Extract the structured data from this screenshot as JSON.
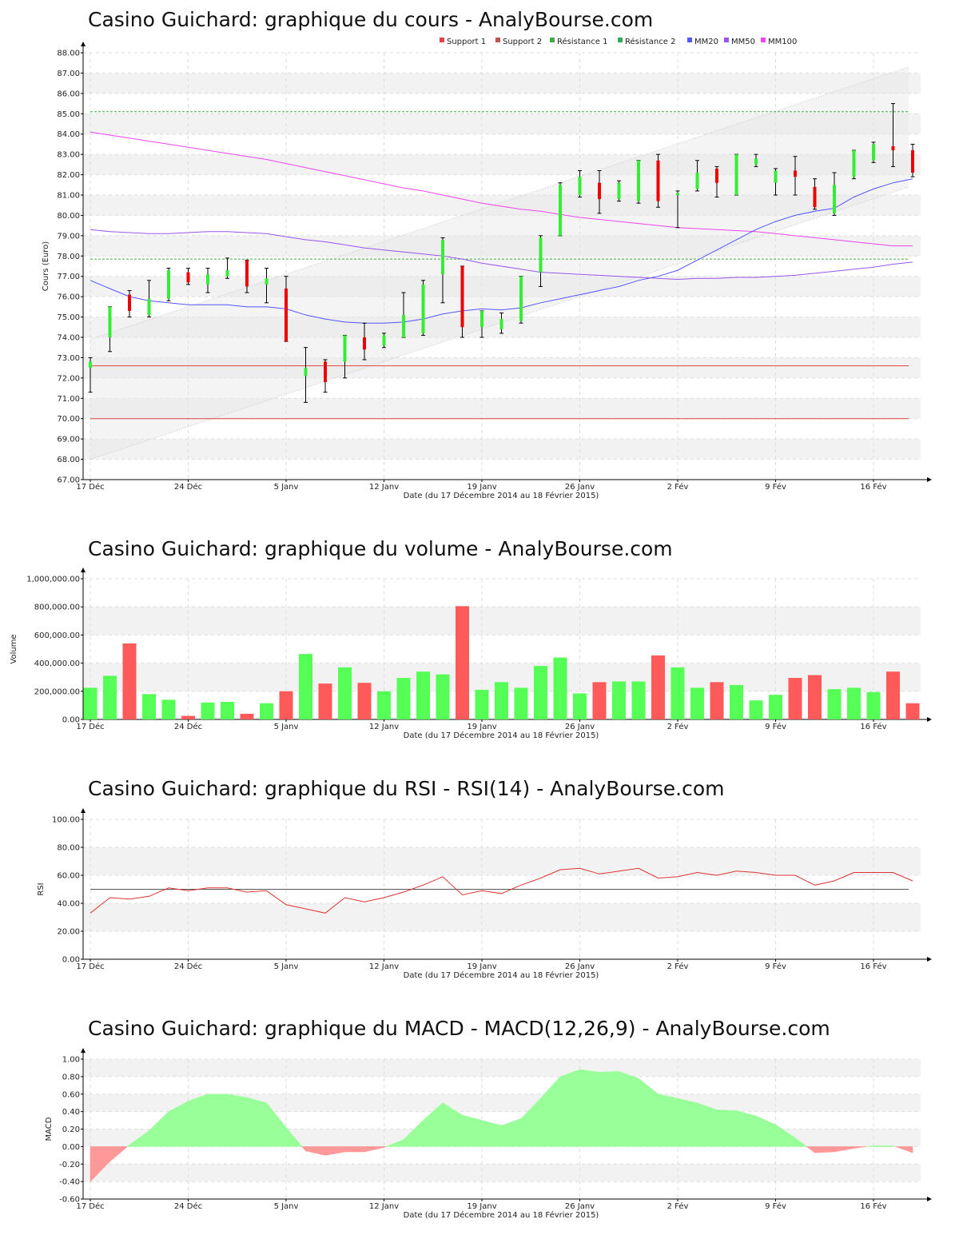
{
  "colors": {
    "up": "#33ee33",
    "down": "#ee0000",
    "support": "#dd4444",
    "resistance": "#44aa44",
    "mm20": "#5555ff",
    "mm50": "#9955ee",
    "mm100": "#ee44ee",
    "vol_up": "#55ff55",
    "vol_down": "#ff5a5a",
    "rsi": "#dd3333",
    "macd_pos": "#99ff99",
    "macd_neg": "#ff9999"
  },
  "shared_x_axis": {
    "xlabel": "Date (du 17 Décembre 2014 au 18 Février 2015)",
    "xticks": [
      {
        "label": "17 Déc",
        "index": 0
      },
      {
        "label": "24 Déc",
        "index": 5
      },
      {
        "label": "5 Janv",
        "index": 10
      },
      {
        "label": "12 Janv",
        "index": 15
      },
      {
        "label": "19 Janv",
        "index": 20
      },
      {
        "label": "26 Janv",
        "index": 25
      },
      {
        "label": "2 Fév",
        "index": 30
      },
      {
        "label": "9 Fév",
        "index": 35
      },
      {
        "label": "16 Fév",
        "index": 40
      }
    ],
    "n_sessions": 43
  },
  "chart_data": [
    {
      "type": "candlestick",
      "title": "Casino Guichard: graphique du cours - AnalyBourse.com",
      "ylabel": "Cours (Euro)",
      "ylim": [
        67,
        88
      ],
      "yticks": [
        "67.00",
        "68.00",
        "69.00",
        "70.00",
        "71.00",
        "72.00",
        "73.00",
        "74.00",
        "75.00",
        "76.00",
        "77.00",
        "78.00",
        "79.00",
        "80.00",
        "81.00",
        "82.00",
        "83.00",
        "84.00",
        "85.00",
        "86.00",
        "87.00",
        "88.00"
      ],
      "legend": [
        "Support 1",
        "Support 2",
        "Résistance 1",
        "Résistance 2",
        "MM20",
        "MM50",
        "MM100"
      ],
      "support_1": 70.0,
      "support_2": 72.6,
      "resistance_1": 77.85,
      "resistance_2": 85.1,
      "trend_channel": {
        "lower": [
          68.0,
          81.4
        ],
        "upper": [
          73.9,
          87.3
        ]
      },
      "candles": [
        {
          "o": 72.5,
          "h": 73.0,
          "l": 71.3,
          "c": 72.8
        },
        {
          "o": 74.0,
          "h": 75.5,
          "l": 73.3,
          "c": 75.5
        },
        {
          "o": 76.1,
          "h": 76.3,
          "l": 75.0,
          "c": 75.3
        },
        {
          "o": 75.1,
          "h": 76.8,
          "l": 75.0,
          "c": 75.9
        },
        {
          "o": 75.9,
          "h": 77.4,
          "l": 75.8,
          "c": 77.3
        },
        {
          "o": 77.2,
          "h": 77.4,
          "l": 76.6,
          "c": 76.7
        },
        {
          "o": 76.6,
          "h": 77.4,
          "l": 76.2,
          "c": 77.1
        },
        {
          "o": 77.0,
          "h": 77.9,
          "l": 76.9,
          "c": 77.3
        },
        {
          "o": 77.8,
          "h": 77.8,
          "l": 76.2,
          "c": 76.5
        },
        {
          "o": 76.6,
          "h": 77.4,
          "l": 75.7,
          "c": 76.9
        },
        {
          "o": 76.4,
          "h": 77.0,
          "l": 73.8,
          "c": 73.8
        },
        {
          "o": 72.1,
          "h": 73.5,
          "l": 70.8,
          "c": 72.5
        },
        {
          "o": 72.8,
          "h": 72.9,
          "l": 71.3,
          "c": 71.8
        },
        {
          "o": 72.8,
          "h": 74.1,
          "l": 72.0,
          "c": 74.1
        },
        {
          "o": 74.0,
          "h": 74.7,
          "l": 72.9,
          "c": 73.4
        },
        {
          "o": 73.6,
          "h": 74.2,
          "l": 73.5,
          "c": 74.1
        },
        {
          "o": 74.0,
          "h": 76.2,
          "l": 74.0,
          "c": 75.1
        },
        {
          "o": 74.2,
          "h": 76.8,
          "l": 74.1,
          "c": 76.6
        },
        {
          "o": 77.1,
          "h": 78.9,
          "l": 75.7,
          "c": 78.8
        },
        {
          "o": 77.5,
          "h": 77.5,
          "l": 74.0,
          "c": 74.5
        },
        {
          "o": 74.5,
          "h": 75.3,
          "l": 74.0,
          "c": 75.3
        },
        {
          "o": 74.4,
          "h": 75.2,
          "l": 74.2,
          "c": 74.9
        },
        {
          "o": 74.8,
          "h": 77.0,
          "l": 74.7,
          "c": 77.0
        },
        {
          "o": 77.2,
          "h": 79.0,
          "l": 76.5,
          "c": 78.9
        },
        {
          "o": 79.0,
          "h": 81.6,
          "l": 79.0,
          "c": 81.5
        },
        {
          "o": 81.0,
          "h": 82.2,
          "l": 80.9,
          "c": 81.9
        },
        {
          "o": 81.6,
          "h": 82.2,
          "l": 80.1,
          "c": 80.8
        },
        {
          "o": 80.8,
          "h": 81.7,
          "l": 80.7,
          "c": 81.6
        },
        {
          "o": 80.7,
          "h": 82.7,
          "l": 80.6,
          "c": 82.7
        },
        {
          "o": 82.7,
          "h": 83.0,
          "l": 80.4,
          "c": 80.7
        },
        {
          "o": 81.0,
          "h": 81.2,
          "l": 79.4,
          "c": 81.1
        },
        {
          "o": 81.3,
          "h": 82.7,
          "l": 81.2,
          "c": 82.1
        },
        {
          "o": 82.3,
          "h": 82.4,
          "l": 80.9,
          "c": 81.6
        },
        {
          "o": 81.0,
          "h": 83.0,
          "l": 81.0,
          "c": 83.0
        },
        {
          "o": 82.5,
          "h": 83.0,
          "l": 82.4,
          "c": 82.8
        },
        {
          "o": 81.6,
          "h": 82.3,
          "l": 81.0,
          "c": 82.2
        },
        {
          "o": 82.2,
          "h": 82.9,
          "l": 81.0,
          "c": 81.9
        },
        {
          "o": 81.4,
          "h": 81.8,
          "l": 80.3,
          "c": 80.4
        },
        {
          "o": 80.1,
          "h": 82.1,
          "l": 80.0,
          "c": 81.5
        },
        {
          "o": 81.9,
          "h": 83.2,
          "l": 81.8,
          "c": 83.2
        },
        {
          "o": 82.7,
          "h": 83.6,
          "l": 82.6,
          "c": 83.5
        },
        {
          "o": 83.4,
          "h": 85.5,
          "l": 82.4,
          "c": 83.2
        },
        {
          "o": 83.2,
          "h": 83.5,
          "l": 81.9,
          "c": 82.1
        }
      ],
      "mm20": [
        76.8,
        76.4,
        76.0,
        75.8,
        75.7,
        75.6,
        75.6,
        75.6,
        75.5,
        75.5,
        75.4,
        75.1,
        74.9,
        74.75,
        74.7,
        74.7,
        74.75,
        74.9,
        75.15,
        75.3,
        75.4,
        75.35,
        75.45,
        75.7,
        75.9,
        76.1,
        76.3,
        76.5,
        76.8,
        77.0,
        77.3,
        77.8,
        78.3,
        78.8,
        79.3,
        79.7,
        80.0,
        80.2,
        80.35,
        80.9,
        81.3,
        81.6,
        81.8
      ],
      "mm50": [
        79.3,
        79.2,
        79.15,
        79.1,
        79.1,
        79.15,
        79.2,
        79.2,
        79.15,
        79.1,
        78.95,
        78.8,
        78.7,
        78.55,
        78.4,
        78.3,
        78.2,
        78.1,
        78.0,
        77.85,
        77.65,
        77.5,
        77.35,
        77.2,
        77.15,
        77.1,
        77.05,
        77.0,
        76.95,
        76.9,
        76.85,
        76.9,
        76.9,
        76.95,
        76.95,
        77.0,
        77.05,
        77.15,
        77.25,
        77.35,
        77.45,
        77.6,
        77.7
      ],
      "mm100": [
        84.1,
        83.95,
        83.8,
        83.65,
        83.5,
        83.35,
        83.2,
        83.05,
        82.9,
        82.75,
        82.55,
        82.35,
        82.15,
        81.95,
        81.75,
        81.55,
        81.35,
        81.2,
        81.0,
        80.8,
        80.6,
        80.45,
        80.3,
        80.2,
        80.05,
        79.9,
        79.8,
        79.7,
        79.6,
        79.5,
        79.4,
        79.35,
        79.3,
        79.25,
        79.2,
        79.1,
        79.0,
        78.9,
        78.8,
        78.7,
        78.6,
        78.5,
        78.5
      ]
    },
    {
      "type": "bar",
      "title": "Casino Guichard: graphique du volume - AnalyBourse.com",
      "ylabel": "Volume",
      "ylim": [
        0,
        1000000
      ],
      "yticks": [
        "0.00",
        "200,000.00",
        "400,000.00",
        "600,000.00",
        "800,000.00",
        "1,000,000.00"
      ],
      "values": [
        225000,
        310000,
        540000,
        180000,
        140000,
        25000,
        120000,
        125000,
        40000,
        115000,
        200000,
        465000,
        255000,
        370000,
        260000,
        200000,
        295000,
        340000,
        320000,
        805000,
        210000,
        265000,
        225000,
        380000,
        440000,
        185000,
        265000,
        270000,
        270000,
        455000,
        370000,
        225000,
        265000,
        245000,
        135000,
        175000,
        295000,
        315000,
        215000,
        225000,
        195000,
        340000,
        115000
      ],
      "up": [
        true,
        true,
        false,
        true,
        true,
        false,
        true,
        true,
        false,
        true,
        false,
        true,
        false,
        true,
        false,
        true,
        true,
        true,
        true,
        false,
        true,
        true,
        true,
        true,
        true,
        true,
        false,
        true,
        true,
        false,
        true,
        true,
        false,
        true,
        true,
        true,
        false,
        false,
        true,
        true,
        true,
        false,
        false
      ]
    },
    {
      "type": "line",
      "title": "Casino Guichard: graphique du RSI - RSI(14) - AnalyBourse.com",
      "ylabel": "RSI",
      "ylim": [
        0,
        100
      ],
      "yticks": [
        "0.00",
        "20.00",
        "40.00",
        "60.00",
        "80.00",
        "100.00"
      ],
      "reference_line": 50,
      "values": [
        33,
        44,
        43,
        45,
        51,
        49,
        51,
        51,
        48,
        49,
        39,
        36,
        33,
        44,
        41,
        44,
        48,
        53,
        59,
        46,
        49,
        47,
        53,
        58,
        64,
        65,
        61,
        63,
        65,
        58,
        59,
        62,
        60,
        63,
        62,
        60,
        60,
        53,
        56,
        62,
        62,
        62,
        56
      ]
    },
    {
      "type": "area",
      "title": "Casino Guichard: graphique du MACD - MACD(12,26,9) - AnalyBourse.com",
      "ylabel": "MACD",
      "ylim": [
        -0.6,
        1.0
      ],
      "yticks": [
        "-0.60",
        "-0.40",
        "-0.20",
        "0.00",
        "0.20",
        "0.40",
        "0.60",
        "0.80",
        "1.00"
      ],
      "values": [
        -0.4,
        -0.17,
        0.02,
        0.18,
        0.4,
        0.52,
        0.6,
        0.6,
        0.56,
        0.5,
        0.22,
        -0.05,
        -0.1,
        -0.06,
        -0.06,
        -0.01,
        0.08,
        0.3,
        0.5,
        0.36,
        0.3,
        0.24,
        0.32,
        0.55,
        0.8,
        0.88,
        0.85,
        0.86,
        0.78,
        0.6,
        0.55,
        0.5,
        0.42,
        0.41,
        0.35,
        0.25,
        0.1,
        -0.07,
        -0.06,
        -0.02,
        0.01,
        0.01,
        -0.07
      ]
    }
  ]
}
